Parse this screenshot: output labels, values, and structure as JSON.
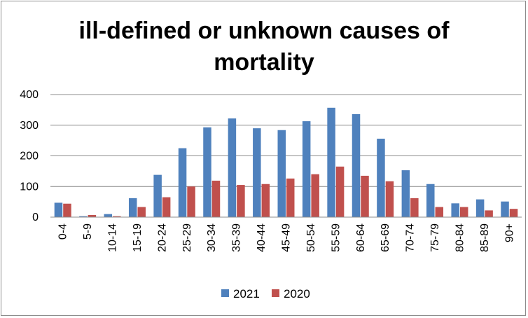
{
  "chart_data": {
    "type": "bar",
    "title_lines": [
      "ill-defined or unknown causes of",
      "mortality"
    ],
    "xlabel": "",
    "ylabel": "",
    "ylim": [
      0,
      400
    ],
    "yticks": [
      "0",
      "100",
      "200",
      "300",
      "400"
    ],
    "grid": "horizontal",
    "legend_position": "bottom",
    "categories": [
      "0-4",
      "5-9",
      "10-14",
      "15-19",
      "20-24",
      "25-29",
      "30-34",
      "35-39",
      "40-44",
      "45-49",
      "50-54",
      "55-59",
      "60-64",
      "65-69",
      "70-74",
      "75-79",
      "80-84",
      "85-89",
      "90+"
    ],
    "series": [
      {
        "name": "2021",
        "color": "#4f81bd",
        "values": [
          47,
          3,
          10,
          62,
          138,
          225,
          293,
          322,
          290,
          284,
          313,
          357,
          336,
          256,
          153,
          108,
          45,
          58,
          51
        ]
      },
      {
        "name": "2020",
        "color": "#c0504d",
        "values": [
          44,
          7,
          3,
          33,
          65,
          100,
          119,
          105,
          108,
          126,
          140,
          165,
          135,
          117,
          62,
          33,
          33,
          22,
          27
        ]
      }
    ]
  }
}
